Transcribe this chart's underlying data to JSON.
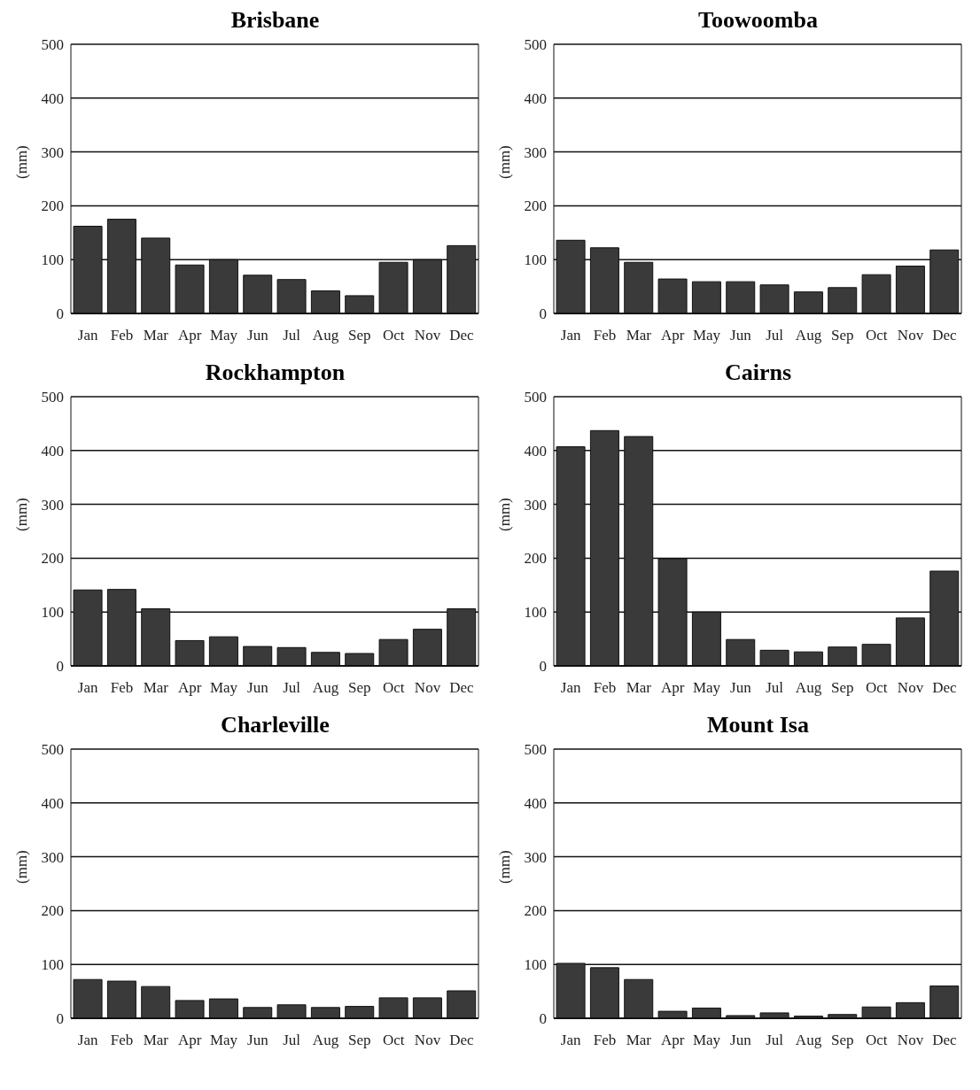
{
  "chart_data": [
    {
      "type": "bar",
      "title": "Brisbane",
      "ylabel": "(mm)",
      "categories": [
        "Jan",
        "Feb",
        "Mar",
        "Apr",
        "May",
        "Jun",
        "Jul",
        "Aug",
        "Sep",
        "Oct",
        "Nov",
        "Dec"
      ],
      "values": [
        162,
        175,
        140,
        90,
        100,
        71,
        63,
        42,
        33,
        95,
        100,
        126
      ],
      "color": "#3a3a3a",
      "ylim": [
        0,
        500
      ],
      "yticks": [
        0,
        100,
        200,
        300,
        400,
        500
      ],
      "grid": "y"
    },
    {
      "type": "bar",
      "title": "Toowoomba",
      "ylabel": "(mm)",
      "categories": [
        "Jan",
        "Feb",
        "Mar",
        "Apr",
        "May",
        "Jun",
        "Jul",
        "Aug",
        "Sep",
        "Oct",
        "Nov",
        "Dec"
      ],
      "values": [
        136,
        122,
        95,
        64,
        59,
        59,
        53,
        40,
        48,
        72,
        88,
        118
      ],
      "color": "#3a3a3a",
      "ylim": [
        0,
        500
      ],
      "yticks": [
        0,
        100,
        200,
        300,
        400,
        500
      ],
      "grid": "y"
    },
    {
      "type": "bar",
      "title": "Rockhampton",
      "ylabel": "(mm)",
      "categories": [
        "Jan",
        "Feb",
        "Mar",
        "Apr",
        "May",
        "Jun",
        "Jul",
        "Aug",
        "Sep",
        "Oct",
        "Nov",
        "Dec"
      ],
      "values": [
        141,
        142,
        106,
        47,
        54,
        36,
        34,
        25,
        23,
        49,
        68,
        106
      ],
      "color": "#3a3a3a",
      "ylim": [
        0,
        500
      ],
      "yticks": [
        0,
        100,
        200,
        300,
        400,
        500
      ],
      "grid": "y"
    },
    {
      "type": "bar",
      "title": "Cairns",
      "ylabel": "(mm)",
      "categories": [
        "Jan",
        "Feb",
        "Mar",
        "Apr",
        "May",
        "Jun",
        "Jul",
        "Aug",
        "Sep",
        "Oct",
        "Nov",
        "Dec"
      ],
      "values": [
        407,
        437,
        426,
        199,
        100,
        49,
        29,
        26,
        35,
        40,
        89,
        176
      ],
      "color": "#3a3a3a",
      "ylim": [
        0,
        500
      ],
      "yticks": [
        0,
        100,
        200,
        300,
        400,
        500
      ],
      "grid": "y"
    },
    {
      "type": "bar",
      "title": "Charleville",
      "ylabel": "(mm)",
      "categories": [
        "Jan",
        "Feb",
        "Mar",
        "Apr",
        "May",
        "Jun",
        "Jul",
        "Aug",
        "Sep",
        "Oct",
        "Nov",
        "Dec"
      ],
      "values": [
        72,
        69,
        59,
        33,
        36,
        20,
        25,
        20,
        22,
        38,
        38,
        51
      ],
      "color": "#3a3a3a",
      "ylim": [
        0,
        500
      ],
      "yticks": [
        0,
        100,
        200,
        300,
        400,
        500
      ],
      "grid": "y"
    },
    {
      "type": "bar",
      "title": "Mount Isa",
      "ylabel": "(mm)",
      "categories": [
        "Jan",
        "Feb",
        "Mar",
        "Apr",
        "May",
        "Jun",
        "Jul",
        "Aug",
        "Sep",
        "Oct",
        "Nov",
        "Dec"
      ],
      "values": [
        102,
        94,
        72,
        13,
        19,
        5,
        10,
        4,
        7,
        21,
        29,
        60
      ],
      "color": "#3a3a3a",
      "ylim": [
        0,
        500
      ],
      "yticks": [
        0,
        100,
        200,
        300,
        400,
        500
      ],
      "grid": "y"
    }
  ]
}
